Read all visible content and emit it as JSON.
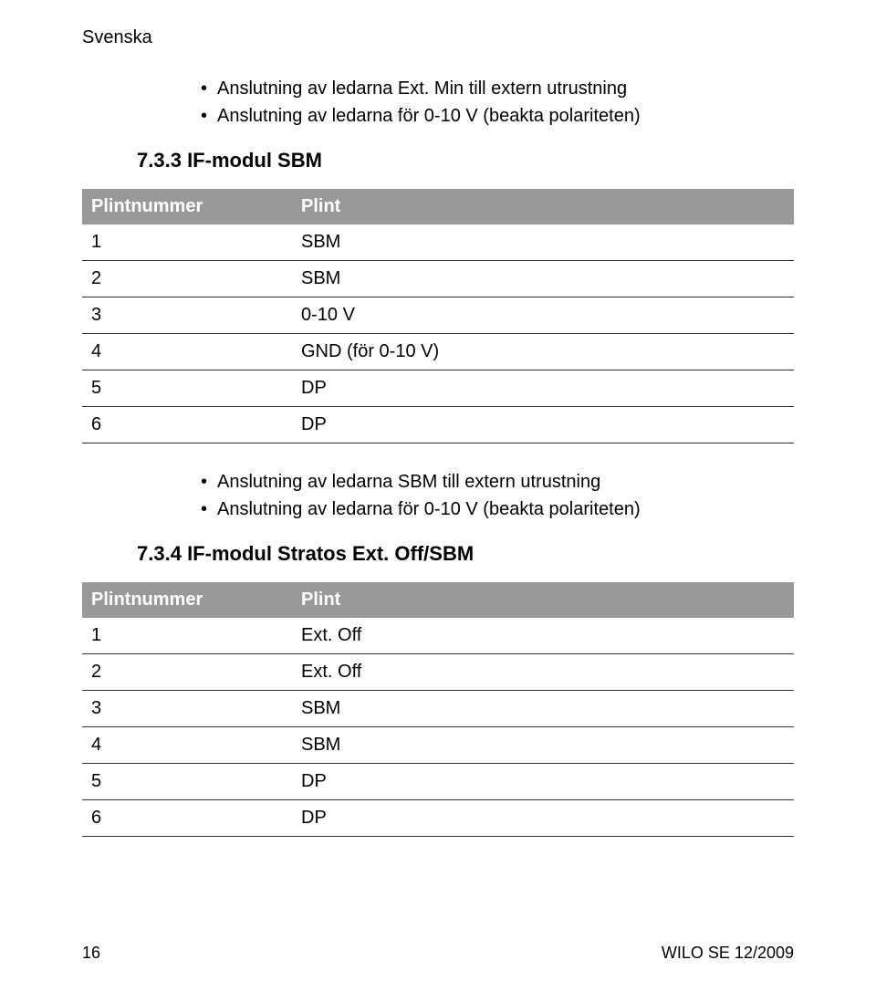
{
  "top_label": "Svenska",
  "bullets_1": {
    "items": [
      "Anslutning av ledarna Ext. Min till extern utrustning",
      "Anslutning av ledarna för 0-10 V (beakta polariteten)"
    ]
  },
  "section_733": {
    "number": "7.3.3",
    "title": "IF-modul SBM"
  },
  "table_733": {
    "header_col1": "Plintnummer",
    "header_col2": "Plint",
    "rows": [
      {
        "c1": "1",
        "c2": "SBM"
      },
      {
        "c1": "2",
        "c2": "SBM"
      },
      {
        "c1": "3",
        "c2": "0-10 V"
      },
      {
        "c1": "4",
        "c2": "GND (för 0-10 V)"
      },
      {
        "c1": "5",
        "c2": "DP"
      },
      {
        "c1": "6",
        "c2": "DP"
      }
    ]
  },
  "bullets_2": {
    "items": [
      "Anslutning av ledarna SBM till extern utrustning",
      "Anslutning av ledarna för 0-10 V (beakta polariteten)"
    ]
  },
  "section_734": {
    "number": "7.3.4",
    "title": "IF-modul Stratos Ext. Off/SBM"
  },
  "table_734": {
    "header_col1": "Plintnummer",
    "header_col2": "Plint",
    "rows": [
      {
        "c1": "1",
        "c2": "Ext. Off"
      },
      {
        "c1": "2",
        "c2": "Ext. Off"
      },
      {
        "c1": "3",
        "c2": "SBM"
      },
      {
        "c1": "4",
        "c2": "SBM"
      },
      {
        "c1": "5",
        "c2": "DP"
      },
      {
        "c1": "6",
        "c2": "DP"
      }
    ]
  },
  "footer": {
    "page_number": "16",
    "doc_ref": "WILO SE 12/2009"
  },
  "colors": {
    "header_bg": "#999999",
    "header_text": "#ffffff",
    "row_border": "#333333",
    "body_text": "#000000",
    "page_bg": "#ffffff"
  }
}
